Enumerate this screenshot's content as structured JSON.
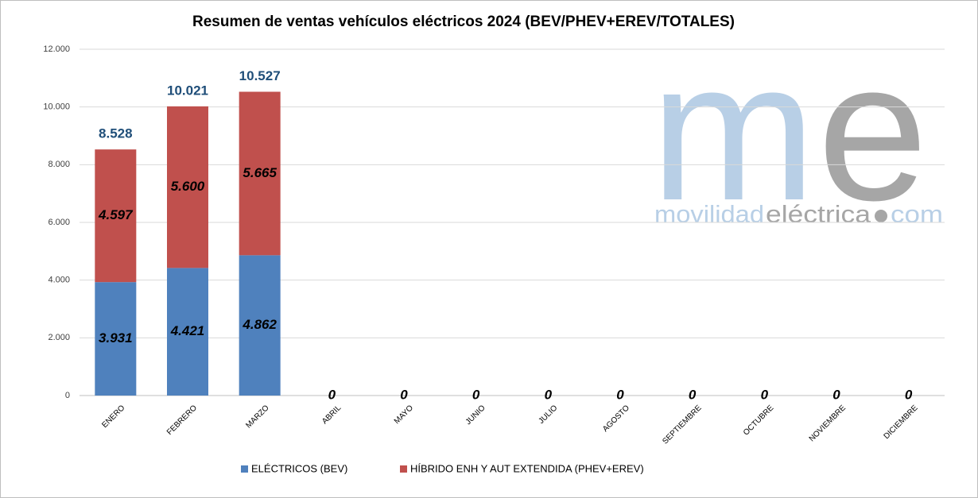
{
  "chart_data": {
    "type": "stacked_bar",
    "title": "Resumen de ventas vehículos eléctricos 2024 (BEV/PHEV+EREV/TOTALES)",
    "categories": [
      "ENERO",
      "FEBRERO",
      "MARZO",
      "ABRIL",
      "MAYO",
      "JUNIO",
      "JULIO",
      "AGOSTO",
      "SEPTIEMBRE",
      "OCTUBRE",
      "NOVIEMBRE",
      "DICIEMBRE"
    ],
    "series": [
      {
        "name": "ELÉCTRICOS (BEV)",
        "color": "#4f81bd",
        "values": [
          3931,
          4421,
          4862,
          0,
          0,
          0,
          0,
          0,
          0,
          0,
          0,
          0
        ],
        "value_labels": [
          "3.931",
          "4.421",
          "4.862",
          "0",
          "0",
          "0",
          "0",
          "0",
          "0",
          "0",
          "0",
          "0"
        ]
      },
      {
        "name": "HÍBRIDO ENH Y AUT EXTENDIDA (PHEV+EREV)",
        "color": "#c0504d",
        "values": [
          4597,
          5600,
          5665,
          null,
          null,
          null,
          null,
          null,
          null,
          null,
          null,
          null
        ],
        "value_labels": [
          "4.597",
          "5.600",
          "5.665",
          null,
          null,
          null,
          null,
          null,
          null,
          null,
          null,
          null
        ]
      }
    ],
    "totals": {
      "color": "#1f4e79",
      "values": [
        8528,
        10021,
        10527,
        null,
        null,
        null,
        null,
        null,
        null,
        null,
        null,
        null
      ],
      "value_labels": [
        "8.528",
        "10.021",
        "10.527",
        null,
        null,
        null,
        null,
        null,
        null,
        null,
        null,
        null
      ]
    },
    "ylim": [
      0,
      12000
    ],
    "yticks": [
      0,
      {
        "value": 2000,
        "label": "2.000"
      },
      {
        "value": 4000,
        "label": "4.000"
      },
      {
        "value": 6000,
        "label": "6.000"
      },
      {
        "value": 8000,
        "label": "8.000"
      },
      {
        "value": 10000,
        "label": "10.000"
      },
      {
        "value": 12000,
        "label": "12.000"
      }
    ],
    "grid": true,
    "legend": "bottom",
    "watermark": {
      "logo_m": "m",
      "logo_e": "e",
      "text_1": "movilidad",
      "text_2": "eléctrica",
      "text_3": "com"
    }
  }
}
